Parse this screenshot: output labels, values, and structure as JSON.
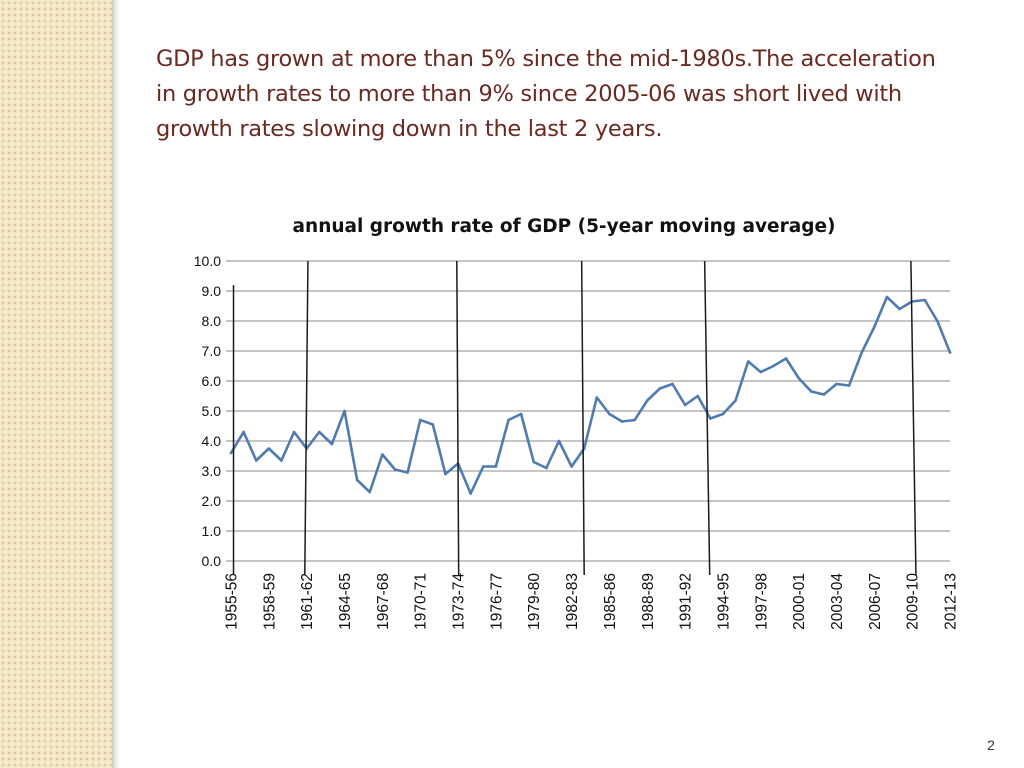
{
  "slide": {
    "title_lines": [
      "GDP has grown at more than 5% since the mid-1980s.The acceleration",
      "in growth rates to more than 9% since 2005-06 was short lived with",
      "growth rates slowing down in the last 2 years."
    ],
    "page_number": "2"
  },
  "colors": {
    "title": "#6a2a22",
    "series": "#4f7cb0",
    "gridline": "#8c8c8c",
    "marker_line": "#1a1a1a",
    "side_panel": "#f3e6c4"
  },
  "chart_data": {
    "type": "line",
    "title": "annual growth rate of GDP (5-year moving average)",
    "xlabel": "",
    "ylabel": "",
    "ylim": [
      0,
      10
    ],
    "y_ticks": [
      "0.0",
      "1.0",
      "2.0",
      "3.0",
      "4.0",
      "5.0",
      "6.0",
      "7.0",
      "8.0",
      "9.0",
      "10.0"
    ],
    "grid": true,
    "tick_label_every": 3,
    "categories": [
      "1955-56",
      "1956-57",
      "1957-58",
      "1958-59",
      "1959-60",
      "1960-61",
      "1961-62",
      "1962-63",
      "1963-64",
      "1964-65",
      "1965-66",
      "1966-67",
      "1967-68",
      "1968-69",
      "1969-70",
      "1970-71",
      "1971-72",
      "1972-73",
      "1973-74",
      "1974-75",
      "1975-76",
      "1976-77",
      "1977-78",
      "1978-79",
      "1979-80",
      "1980-81",
      "1981-82",
      "1982-83",
      "1983-84",
      "1984-85",
      "1985-86",
      "1986-87",
      "1987-88",
      "1988-89",
      "1989-90",
      "1990-91",
      "1991-92",
      "1992-93",
      "1993-94",
      "1994-95",
      "1995-96",
      "1996-97",
      "1997-98",
      "1998-99",
      "1999-00",
      "2000-01",
      "2001-02",
      "2002-03",
      "2003-04",
      "2004-05",
      "2005-06",
      "2006-07",
      "2007-08",
      "2008-09",
      "2009-10",
      "2010-11",
      "2011-12",
      "2012-13"
    ],
    "series": [
      {
        "name": "annual growth rate of GDP (5-year moving average)",
        "values": [
          3.6,
          4.3,
          3.35,
          3.75,
          3.35,
          4.3,
          3.75,
          4.3,
          3.9,
          5.0,
          2.7,
          2.3,
          3.55,
          3.05,
          2.95,
          4.7,
          4.55,
          2.9,
          3.25,
          2.25,
          3.15,
          3.15,
          4.7,
          4.9,
          3.3,
          3.1,
          4.0,
          3.15,
          3.75,
          5.45,
          4.9,
          4.65,
          4.7,
          5.35,
          5.75,
          5.9,
          5.2,
          5.5,
          4.75,
          4.9,
          5.35,
          6.65,
          6.3,
          6.5,
          6.75,
          6.1,
          5.65,
          5.55,
          5.9,
          5.85,
          6.95,
          7.8,
          8.8,
          8.4,
          8.65,
          8.7,
          8.0,
          6.95
        ]
      }
    ],
    "annotations": {
      "vertical_marker_lines": [
        {
          "index_top": 0.2,
          "index_bottom": 0.2,
          "y_top": 9.2
        },
        {
          "index_top": 6.1,
          "index_bottom": 5.85,
          "y_top": 10.0
        },
        {
          "index_top": 17.9,
          "index_bottom": 18.05,
          "y_top": 10.0
        },
        {
          "index_top": 27.8,
          "index_bottom": 28.0,
          "y_top": 10.0
        },
        {
          "index_top": 37.55,
          "index_bottom": 37.95,
          "y_top": 10.0
        },
        {
          "index_top": 53.9,
          "index_bottom": 54.3,
          "y_top": 10.0
        }
      ]
    }
  }
}
